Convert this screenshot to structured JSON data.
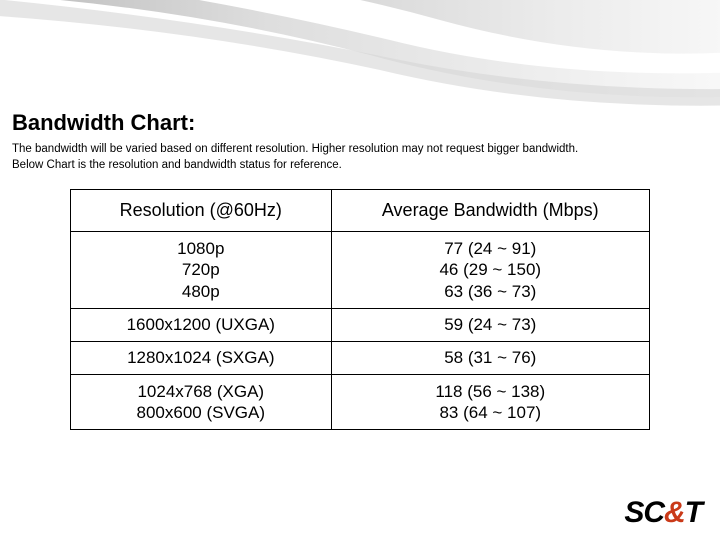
{
  "colors": {
    "background": "#ffffff",
    "text": "#000000",
    "swoosh_gradient": [
      "#6f6f6f",
      "#bfbfbf",
      "#e8e8e8",
      "#ffffff"
    ],
    "logo_black": "#000000",
    "logo_orange": "#ca3a19",
    "table_border": "#000000"
  },
  "typography": {
    "title_fontsize": 22,
    "title_weight": 900,
    "desc_fontsize": 11.5,
    "cell_fontsize": 17,
    "header_cell_fontsize": 18,
    "logo_fontsize": 30
  },
  "title": "Bandwidth Chart:",
  "description_line1": "The bandwidth will be varied based on different resolution.  Higher resolution may not request bigger bandwidth.",
  "description_line2": "Below Chart is the resolution and bandwidth status for reference.",
  "table": {
    "type": "table",
    "column_widths": [
      "45%",
      "55%"
    ],
    "columns": [
      "Resolution (@60Hz)",
      "Average Bandwidth (Mbps)"
    ],
    "rows": [
      {
        "resolution": "1080p\n720p\n480p",
        "bandwidth": "77 (24 ~ 91)\n46 (29 ~ 150)\n63 (36 ~ 73)",
        "multiline": true
      },
      {
        "resolution": "1600x1200 (UXGA)",
        "bandwidth": "59 (24 ~ 73)",
        "multiline": false
      },
      {
        "resolution": "1280x1024 (SXGA)",
        "bandwidth": "58 (31 ~ 76)",
        "multiline": false
      },
      {
        "resolution": "1024x768 (XGA)\n800x600 (SVGA)",
        "bandwidth": "118 (56 ~ 138)\n83 (64 ~ 107)",
        "multiline": true
      }
    ]
  },
  "logo": {
    "sc": "SC",
    "amp": "&",
    "t": "T"
  }
}
